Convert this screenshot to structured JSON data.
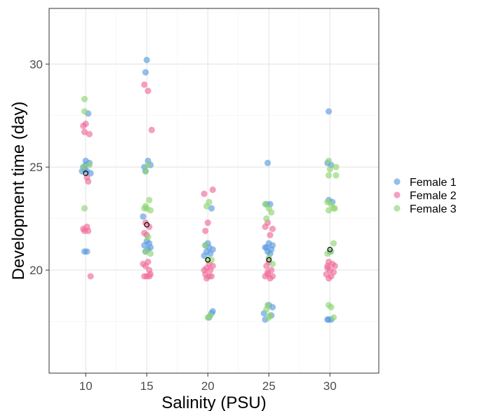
{
  "chart_data": {
    "type": "scatter",
    "title": "",
    "xlabel": "Salinity (PSU)",
    "ylabel": "Development time (day)",
    "xlim": [
      7,
      34
    ],
    "ylim": [
      15,
      32.7
    ],
    "x_ticks": [
      10,
      15,
      20,
      25,
      30
    ],
    "x_tick_labels": [
      "10",
      "15",
      "20",
      "25",
      "30"
    ],
    "y_ticks": [
      20,
      25,
      30
    ],
    "y_tick_labels": [
      "20",
      "25",
      "30"
    ],
    "grid": true,
    "legend_position": "right",
    "colors": {
      "Female 1": "#5b9be0",
      "Female 2": "#ef6b9b",
      "Female 3": "#8fd672",
      "mean": "#000000"
    },
    "series": [
      {
        "name": "Female 1",
        "points": [
          [
            10.2,
            27.6
          ],
          [
            9.8,
            25.0
          ],
          [
            10.0,
            25.3
          ],
          [
            10.3,
            25.2
          ],
          [
            9.9,
            24.9
          ],
          [
            10.1,
            24.8
          ],
          [
            10.4,
            24.7
          ],
          [
            9.7,
            24.8
          ],
          [
            10.0,
            25.1
          ],
          [
            9.9,
            20.9
          ],
          [
            10.1,
            20.9
          ],
          [
            15.0,
            30.2
          ],
          [
            14.9,
            29.6
          ],
          [
            14.7,
            22.6
          ],
          [
            15.1,
            25.3
          ],
          [
            14.8,
            25.0
          ],
          [
            15.3,
            25.1
          ],
          [
            14.9,
            24.8
          ],
          [
            15.2,
            21.3
          ],
          [
            14.8,
            21.2
          ],
          [
            15.1,
            21.0
          ],
          [
            14.9,
            20.9
          ],
          [
            15.0,
            21.4
          ],
          [
            15.3,
            21.1
          ],
          [
            20.3,
            23.0
          ],
          [
            19.8,
            21.2
          ],
          [
            20.1,
            21.1
          ],
          [
            20.4,
            21.0
          ],
          [
            19.9,
            20.9
          ],
          [
            20.2,
            20.8
          ],
          [
            19.7,
            20.7
          ],
          [
            20.0,
            21.3
          ],
          [
            20.3,
            17.9
          ],
          [
            20.1,
            17.7
          ],
          [
            20.4,
            18.0
          ],
          [
            24.9,
            25.2
          ],
          [
            25.1,
            23.2
          ],
          [
            24.8,
            23.2
          ],
          [
            25.0,
            21.3
          ],
          [
            24.7,
            21.1
          ],
          [
            25.2,
            21.0
          ],
          [
            24.9,
            20.9
          ],
          [
            25.3,
            21.2
          ],
          [
            25.1,
            20.8
          ],
          [
            24.8,
            21.1
          ],
          [
            25.0,
            18.3
          ],
          [
            24.6,
            17.9
          ],
          [
            25.3,
            18.2
          ],
          [
            24.7,
            17.6
          ],
          [
            25.2,
            17.8
          ],
          [
            29.9,
            27.7
          ],
          [
            29.8,
            25.2
          ],
          [
            30.1,
            25.1
          ],
          [
            29.9,
            23.4
          ],
          [
            30.2,
            23.3
          ],
          [
            30.0,
            20.9
          ],
          [
            29.9,
            17.6
          ],
          [
            30.1,
            17.6
          ],
          [
            29.8,
            17.6
          ]
        ]
      },
      {
        "name": "Female 2",
        "points": [
          [
            10.0,
            27.1
          ],
          [
            9.8,
            27.0
          ],
          [
            10.3,
            26.6
          ],
          [
            9.9,
            26.7
          ],
          [
            10.1,
            24.5
          ],
          [
            10.2,
            24.3
          ],
          [
            9.8,
            22.0
          ],
          [
            9.9,
            21.9
          ],
          [
            10.1,
            22.1
          ],
          [
            10.2,
            21.9
          ],
          [
            10.4,
            19.7
          ],
          [
            14.8,
            29.0
          ],
          [
            15.1,
            28.7
          ],
          [
            15.4,
            26.8
          ],
          [
            14.9,
            22.3
          ],
          [
            15.2,
            22.1
          ],
          [
            14.8,
            21.8
          ],
          [
            15.0,
            21.7
          ],
          [
            15.1,
            20.4
          ],
          [
            14.9,
            20.2
          ],
          [
            15.2,
            20.0
          ],
          [
            14.7,
            20.3
          ],
          [
            15.3,
            19.8
          ],
          [
            14.8,
            19.7
          ],
          [
            15.0,
            19.7
          ],
          [
            15.2,
            19.7
          ],
          [
            19.7,
            23.7
          ],
          [
            20.4,
            23.9
          ],
          [
            20.0,
            22.3
          ],
          [
            19.8,
            21.9
          ],
          [
            20.1,
            20.3
          ],
          [
            19.9,
            20.1
          ],
          [
            20.2,
            20.0
          ],
          [
            19.8,
            19.8
          ],
          [
            20.3,
            19.7
          ],
          [
            19.9,
            19.6
          ],
          [
            20.1,
            19.7
          ],
          [
            20.4,
            20.2
          ],
          [
            19.7,
            20.0
          ],
          [
            24.9,
            22.3
          ],
          [
            25.3,
            22.0
          ],
          [
            24.7,
            22.1
          ],
          [
            25.1,
            21.7
          ],
          [
            25.0,
            20.4
          ],
          [
            24.8,
            20.2
          ],
          [
            25.2,
            20.0
          ],
          [
            24.9,
            19.9
          ],
          [
            25.3,
            19.7
          ],
          [
            24.7,
            19.7
          ],
          [
            25.1,
            19.6
          ],
          [
            24.9,
            19.8
          ],
          [
            29.9,
            20.4
          ],
          [
            30.2,
            20.3
          ],
          [
            29.8,
            20.1
          ],
          [
            30.0,
            20.0
          ],
          [
            30.3,
            19.9
          ],
          [
            29.7,
            19.8
          ],
          [
            30.1,
            19.7
          ],
          [
            29.9,
            19.6
          ],
          [
            30.4,
            20.2
          ],
          [
            29.8,
            20.2
          ]
        ]
      },
      {
        "name": "Female 3",
        "points": [
          [
            9.9,
            28.3
          ],
          [
            9.9,
            27.7
          ],
          [
            9.8,
            25.0
          ],
          [
            10.3,
            25.1
          ],
          [
            9.9,
            23.0
          ],
          [
            14.9,
            24.8
          ],
          [
            15.1,
            25.1
          ],
          [
            15.2,
            23.4
          ],
          [
            14.9,
            23.1
          ],
          [
            15.0,
            23.0
          ],
          [
            15.3,
            22.9
          ],
          [
            14.8,
            23.0
          ],
          [
            15.1,
            21.6
          ],
          [
            15.3,
            20.8
          ],
          [
            14.9,
            20.9
          ],
          [
            19.8,
            21.2
          ],
          [
            20.1,
            23.3
          ],
          [
            19.9,
            23.1
          ],
          [
            20.0,
            20.5
          ],
          [
            20.3,
            20.5
          ],
          [
            20.2,
            17.8
          ],
          [
            20.0,
            17.7
          ],
          [
            24.7,
            23.2
          ],
          [
            25.0,
            23.0
          ],
          [
            25.2,
            22.8
          ],
          [
            24.8,
            22.5
          ],
          [
            25.0,
            20.6
          ],
          [
            25.3,
            20.3
          ],
          [
            24.9,
            18.3
          ],
          [
            24.8,
            18.1
          ],
          [
            25.1,
            17.8
          ],
          [
            25.0,
            17.7
          ],
          [
            29.9,
            25.3
          ],
          [
            30.0,
            24.9
          ],
          [
            30.5,
            25.0
          ],
          [
            29.9,
            24.6
          ],
          [
            30.5,
            24.6
          ],
          [
            29.8,
            23.3
          ],
          [
            30.1,
            23.2
          ],
          [
            30.3,
            23.0
          ],
          [
            30.4,
            23.0
          ],
          [
            29.9,
            22.9
          ],
          [
            30.3,
            21.3
          ],
          [
            30.1,
            20.9
          ],
          [
            29.8,
            20.8
          ],
          [
            29.9,
            18.3
          ],
          [
            30.1,
            18.2
          ],
          [
            30.3,
            17.7
          ]
        ]
      }
    ],
    "means": [
      [
        10.0,
        24.7
      ],
      [
        15.0,
        22.2
      ],
      [
        20.0,
        20.5
      ],
      [
        25.0,
        20.5
      ],
      [
        30.0,
        21.0
      ]
    ],
    "legend": [
      "Female 1",
      "Female 2",
      "Female 3"
    ]
  }
}
